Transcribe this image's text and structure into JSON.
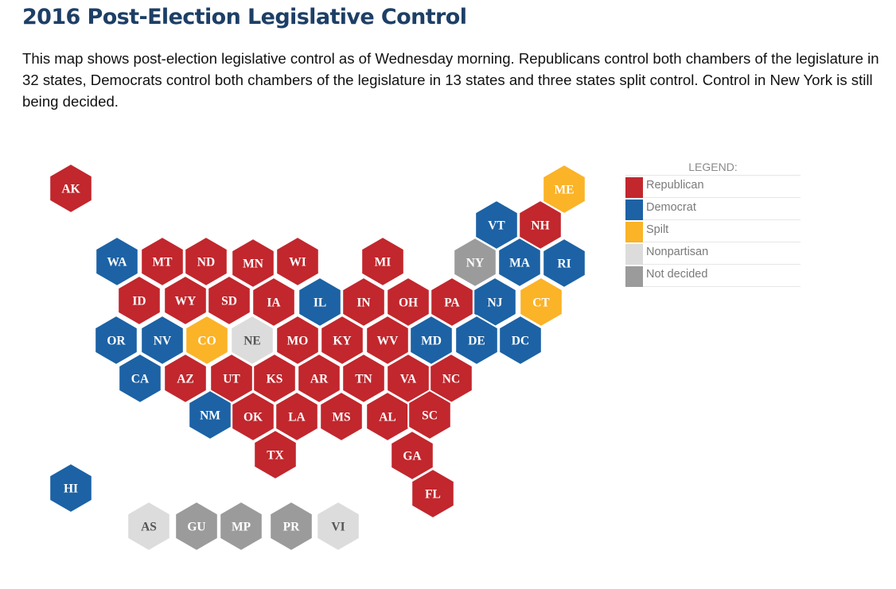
{
  "header": {
    "title": "2016 Post-Election Legislative Control",
    "description": "This map shows post-election legislative control as of Wednesday morning. Republicans control both chambers of the legislature in 32 states, Democrats control both chambers of the legislature in 13 states and three states split control. Control in New York is still being decided."
  },
  "colors": {
    "republican": "#c1272d",
    "democrat": "#1c62a5",
    "split": "#fbb327",
    "nonpartisan": "#dcdcdc",
    "not_decided": "#9b9b9b"
  },
  "legend": {
    "title": "LEGEND:",
    "items": [
      {
        "key": "republican",
        "label": "Republican"
      },
      {
        "key": "democrat",
        "label": "Democrat"
      },
      {
        "key": "split",
        "label": "Spilt"
      },
      {
        "key": "nonpartisan",
        "label": "Nonpartisan"
      },
      {
        "key": "not_decided",
        "label": "Not decided"
      }
    ]
  },
  "map": {
    "states": [
      {
        "abbr": "AK",
        "control": "republican"
      },
      {
        "abbr": "ME",
        "control": "split"
      },
      {
        "abbr": "VT",
        "control": "democrat"
      },
      {
        "abbr": "NH",
        "control": "republican"
      },
      {
        "abbr": "WA",
        "control": "democrat"
      },
      {
        "abbr": "MT",
        "control": "republican"
      },
      {
        "abbr": "ND",
        "control": "republican"
      },
      {
        "abbr": "MN",
        "control": "republican"
      },
      {
        "abbr": "WI",
        "control": "republican"
      },
      {
        "abbr": "MI",
        "control": "republican"
      },
      {
        "abbr": "NY",
        "control": "not_decided"
      },
      {
        "abbr": "MA",
        "control": "democrat"
      },
      {
        "abbr": "RI",
        "control": "democrat"
      },
      {
        "abbr": "ID",
        "control": "republican"
      },
      {
        "abbr": "WY",
        "control": "republican"
      },
      {
        "abbr": "SD",
        "control": "republican"
      },
      {
        "abbr": "IA",
        "control": "republican"
      },
      {
        "abbr": "IL",
        "control": "democrat"
      },
      {
        "abbr": "IN",
        "control": "republican"
      },
      {
        "abbr": "OH",
        "control": "republican"
      },
      {
        "abbr": "PA",
        "control": "republican"
      },
      {
        "abbr": "NJ",
        "control": "democrat"
      },
      {
        "abbr": "CT",
        "control": "split"
      },
      {
        "abbr": "OR",
        "control": "democrat"
      },
      {
        "abbr": "NV",
        "control": "democrat"
      },
      {
        "abbr": "CO",
        "control": "split"
      },
      {
        "abbr": "NE",
        "control": "nonpartisan"
      },
      {
        "abbr": "MO",
        "control": "republican"
      },
      {
        "abbr": "KY",
        "control": "republican"
      },
      {
        "abbr": "WV",
        "control": "republican"
      },
      {
        "abbr": "MD",
        "control": "democrat"
      },
      {
        "abbr": "DE",
        "control": "democrat"
      },
      {
        "abbr": "DC",
        "control": "democrat"
      },
      {
        "abbr": "CA",
        "control": "democrat"
      },
      {
        "abbr": "AZ",
        "control": "republican"
      },
      {
        "abbr": "UT",
        "control": "republican"
      },
      {
        "abbr": "KS",
        "control": "republican"
      },
      {
        "abbr": "AR",
        "control": "republican"
      },
      {
        "abbr": "TN",
        "control": "republican"
      },
      {
        "abbr": "VA",
        "control": "republican"
      },
      {
        "abbr": "NC",
        "control": "republican"
      },
      {
        "abbr": "NM",
        "control": "democrat"
      },
      {
        "abbr": "OK",
        "control": "republican"
      },
      {
        "abbr": "LA",
        "control": "republican"
      },
      {
        "abbr": "MS",
        "control": "republican"
      },
      {
        "abbr": "AL",
        "control": "republican"
      },
      {
        "abbr": "SC",
        "control": "republican"
      },
      {
        "abbr": "TX",
        "control": "republican"
      },
      {
        "abbr": "GA",
        "control": "republican"
      },
      {
        "abbr": "HI",
        "control": "democrat"
      },
      {
        "abbr": "FL",
        "control": "republican"
      },
      {
        "abbr": "AS",
        "control": "nonpartisan"
      },
      {
        "abbr": "GU",
        "control": "not_decided"
      },
      {
        "abbr": "MP",
        "control": "not_decided"
      },
      {
        "abbr": "PR",
        "control": "not_decided"
      },
      {
        "abbr": "VI",
        "control": "nonpartisan"
      }
    ]
  }
}
